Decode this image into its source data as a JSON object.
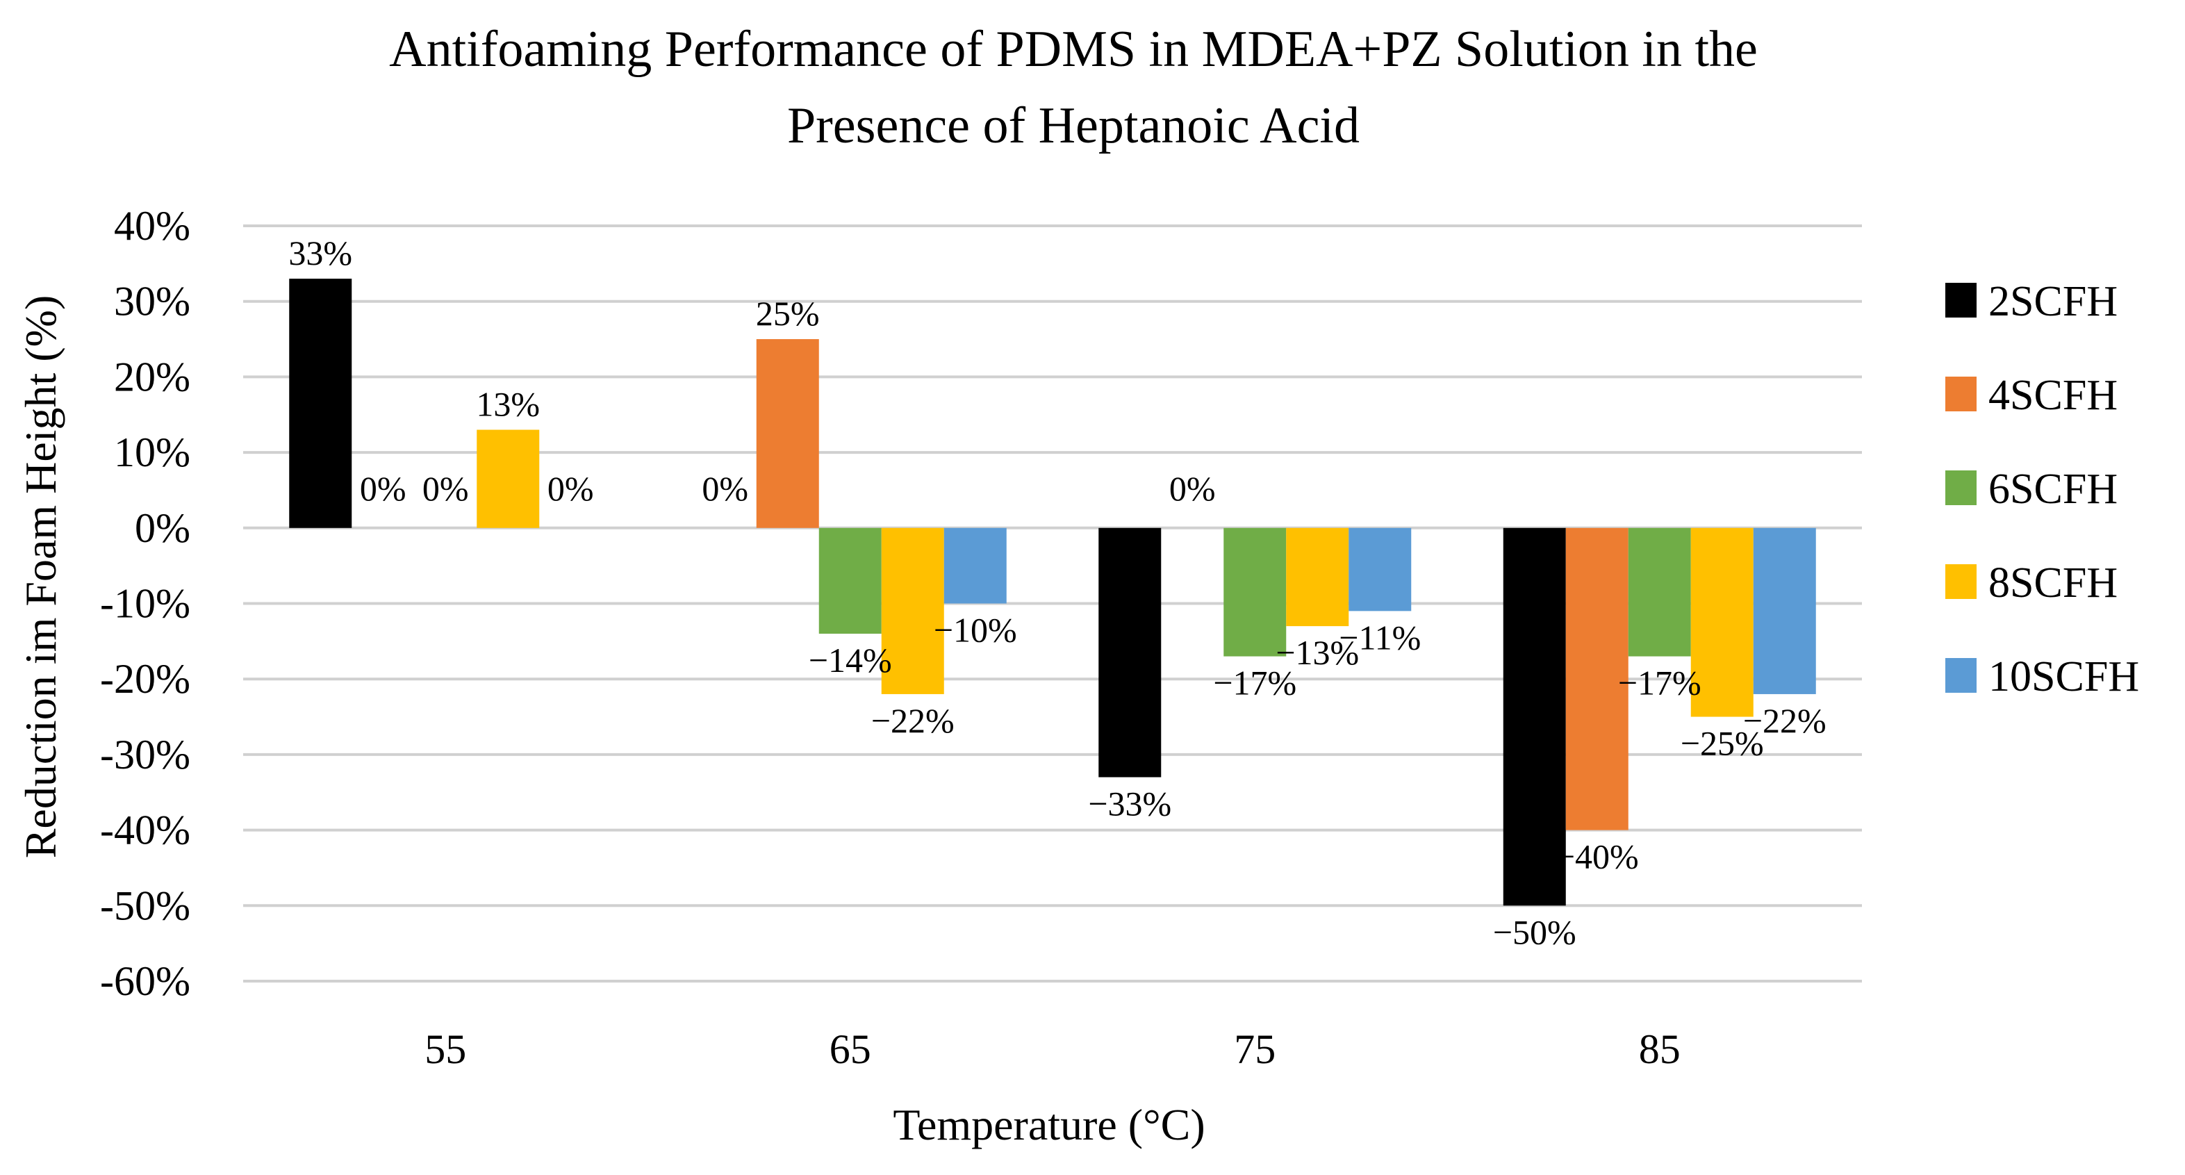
{
  "chart_data": {
    "type": "bar",
    "title_lines": [
      "Antifoaming Performance of PDMS in MDEA+PZ Solution in the",
      "Presence of Heptanoic Acid"
    ],
    "xlabel": "Temperature (°C)",
    "ylabel": "Reduction im Foam Height (%)",
    "categories": [
      "55",
      "65",
      "75",
      "85"
    ],
    "ylim": [
      -60,
      40
    ],
    "yticks": [
      40,
      30,
      20,
      10,
      0,
      -10,
      -20,
      -30,
      -40,
      -50,
      -60
    ],
    "ytick_labels": [
      "40%",
      "30%",
      "20%",
      "10%",
      "0%",
      "-10%",
      "-20%",
      "-30%",
      "-40%",
      "-50%",
      "-60%"
    ],
    "grid": true,
    "legend_position": "right",
    "series": [
      {
        "name": "2SCFH",
        "color": "#000000",
        "values": [
          33,
          0,
          -33,
          -50
        ],
        "labels": [
          "33%",
          "",
          "−33%",
          "−50%"
        ]
      },
      {
        "name": "4SCFH",
        "color": "#ED7D31",
        "values": [
          0,
          25,
          0,
          -40
        ],
        "labels": [
          "0%",
          "25%",
          "0%",
          "−40%"
        ]
      },
      {
        "name": "6SCFH",
        "color": "#70AD47",
        "values": [
          0,
          -14,
          -17,
          -17
        ],
        "labels": [
          "0%",
          "−14%",
          "−17%",
          "−17%"
        ]
      },
      {
        "name": "8SCFH",
        "color": "#FFC000",
        "values": [
          13,
          -22,
          -13,
          -25
        ],
        "labels": [
          "13%",
          "−22%",
          "−13%",
          "−25%"
        ]
      },
      {
        "name": "10SCFH",
        "color": "#5B9BD5",
        "values": [
          0,
          -10,
          -11,
          -22
        ],
        "labels": [
          "0%",
          "−10%",
          "−11%",
          "−22%"
        ]
      }
    ],
    "extra_labels": [
      {
        "text": "0%",
        "category": "65",
        "series": "2SCFH"
      }
    ]
  }
}
